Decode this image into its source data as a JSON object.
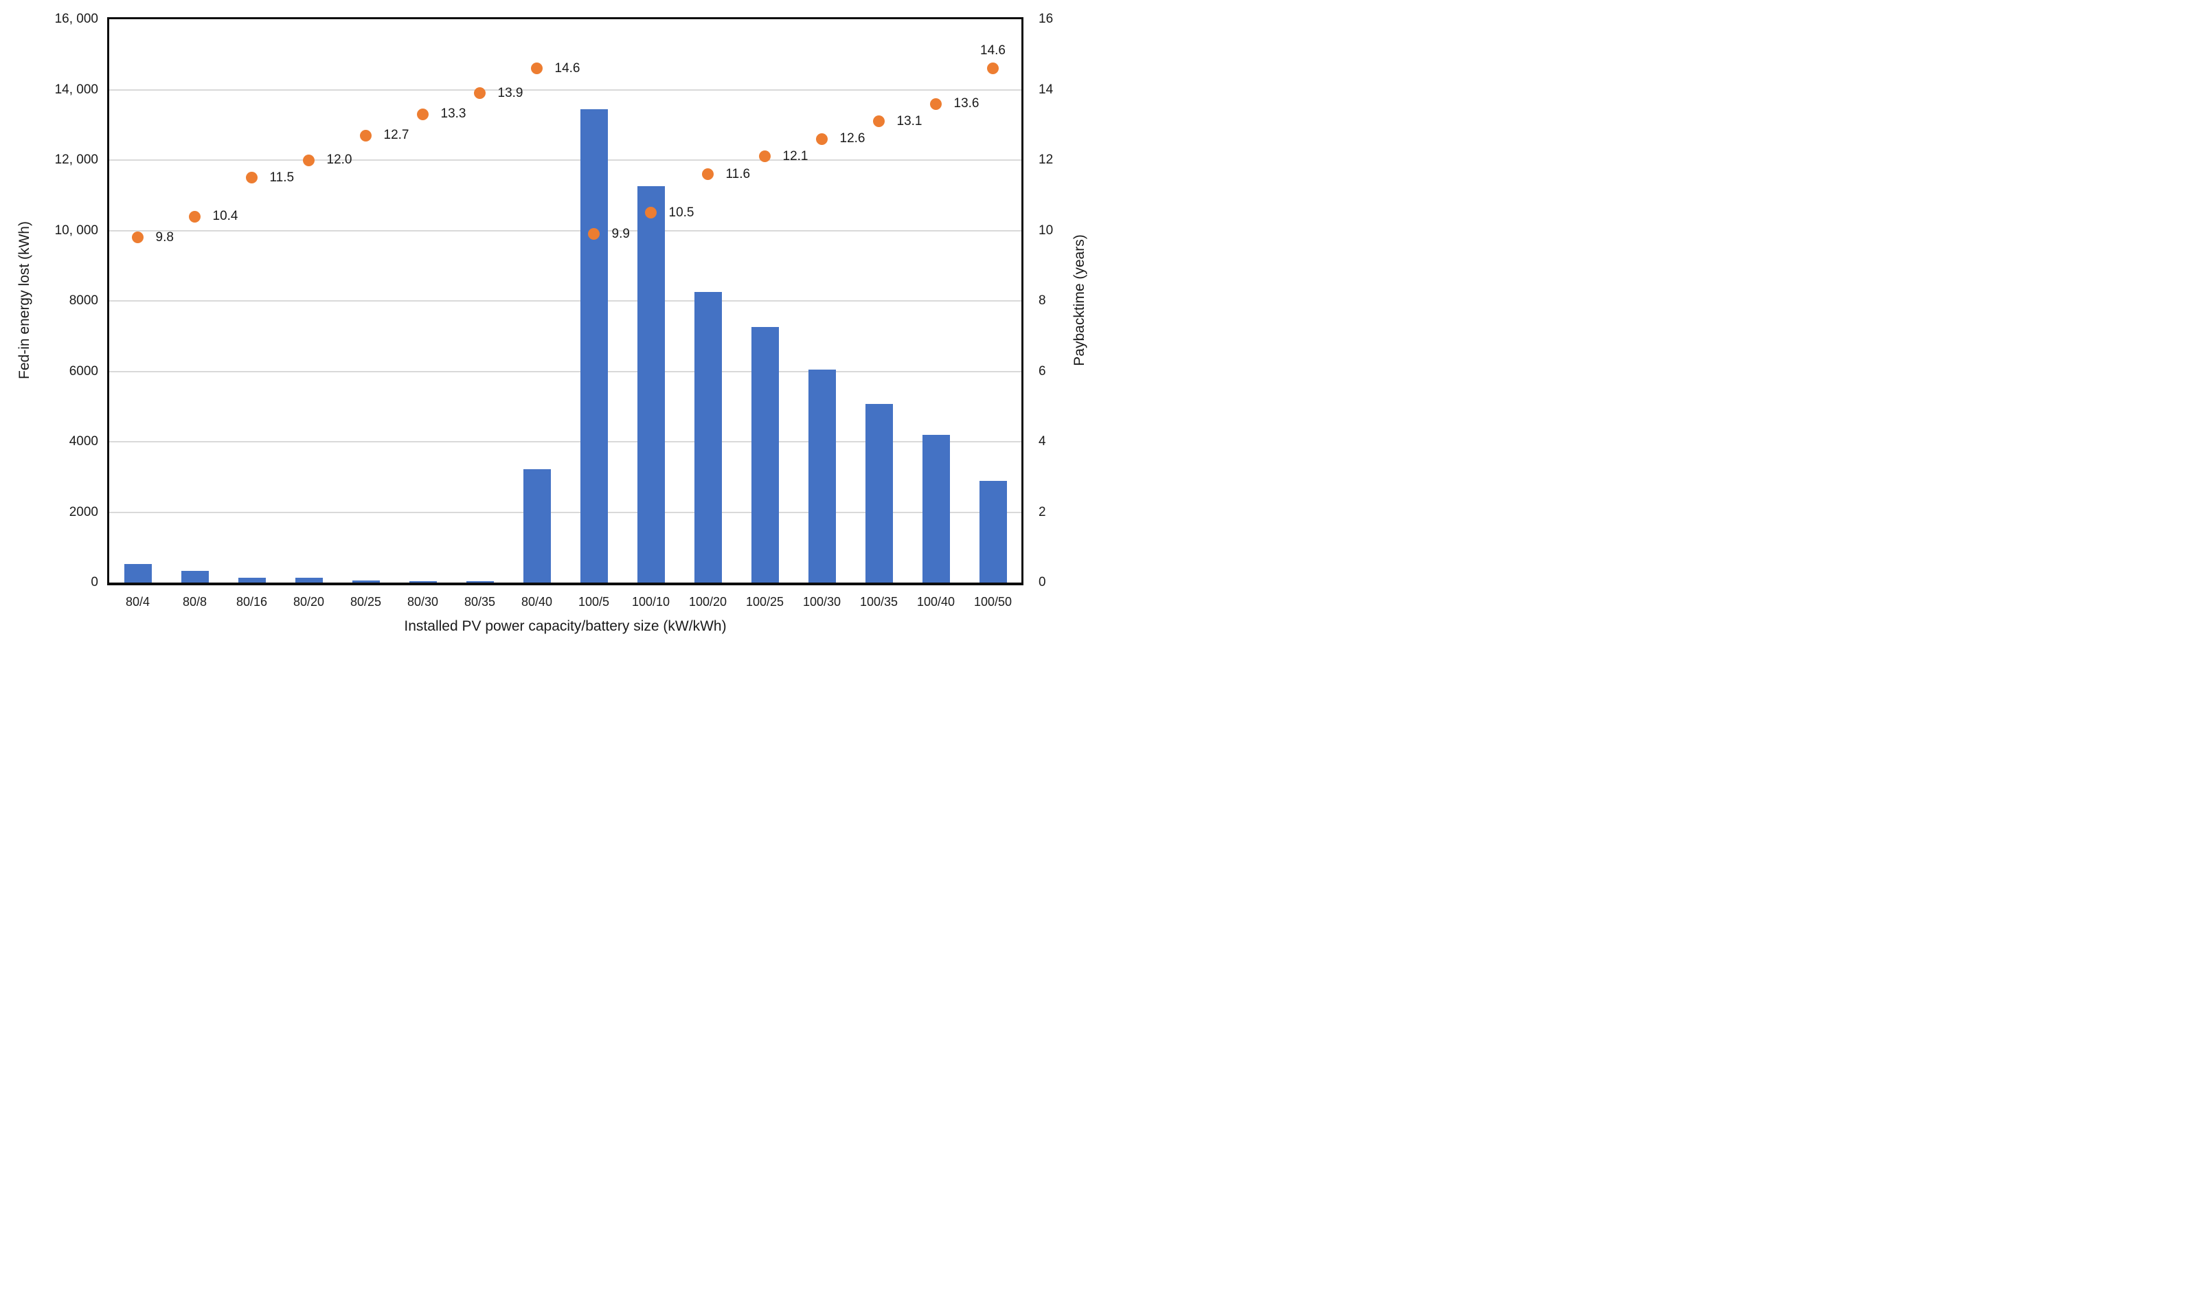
{
  "chart_data": {
    "type": "combo-bar-scatter",
    "title": "",
    "legend": "none",
    "background": "#FFFFFF",
    "axis_color": "#0d0d0d",
    "grid": {
      "show": true,
      "color": "#D9D9D9",
      "orientation": "horizontal"
    },
    "categories": [
      "80/4",
      "80/8",
      "80/16",
      "80/20",
      "80/25",
      "80/30",
      "80/35",
      "80/40",
      "100/5",
      "100/10",
      "100/20",
      "100/25",
      "100/30",
      "100/35",
      "100/40",
      "100/50"
    ],
    "series": [
      {
        "name": "Fed-in energy lost",
        "type": "bar",
        "axis": "left",
        "color": "#4472C4",
        "values": [
          520,
          330,
          130,
          140,
          60,
          40,
          40,
          3220,
          13450,
          11250,
          8250,
          7250,
          6050,
          5080,
          4200,
          2890
        ]
      },
      {
        "name": "Payback time",
        "type": "scatter",
        "axis": "right",
        "color": "#ED7D31",
        "values": [
          9.8,
          10.4,
          11.5,
          12.0,
          12.7,
          13.3,
          13.9,
          14.6,
          9.9,
          10.5,
          11.6,
          12.1,
          12.6,
          13.1,
          13.6,
          14.6
        ],
        "point_labels": [
          "9.8",
          "10.4",
          "11.5",
          "12.0",
          "12.7",
          "13.3",
          "13.9",
          "14.6",
          "9.9",
          "10.5",
          "11.6",
          "12.1",
          "12.6",
          "13.1",
          "13.6",
          "14.6"
        ],
        "label_positions": [
          "right",
          "right",
          "right",
          "right",
          "right",
          "right",
          "right",
          "right",
          "right",
          "right",
          "right",
          "right",
          "right",
          "right",
          "right",
          "above"
        ]
      }
    ],
    "x_axis": {
      "title": "Installed PV power capacity/battery size (kW/kWh)"
    },
    "y_axis_left": {
      "title": "Fed-in energy lost (kWh)",
      "min": 0,
      "max": 16000,
      "tick_values": [
        0,
        2000,
        4000,
        6000,
        8000,
        10000,
        12000,
        14000,
        16000
      ],
      "tick_labels": [
        "0",
        "2000",
        "4000",
        "6000",
        "8000",
        "10, 000",
        "12, 000",
        "14, 000",
        "16, 000"
      ]
    },
    "y_axis_right": {
      "title": "Paybacktime (years)",
      "min": 0,
      "max": 16,
      "tick_values": [
        0,
        2,
        4,
        6,
        8,
        10,
        12,
        14,
        16
      ],
      "tick_labels": [
        "0",
        "2",
        "4",
        "6",
        "8",
        "10",
        "12",
        "14",
        "16"
      ]
    }
  }
}
